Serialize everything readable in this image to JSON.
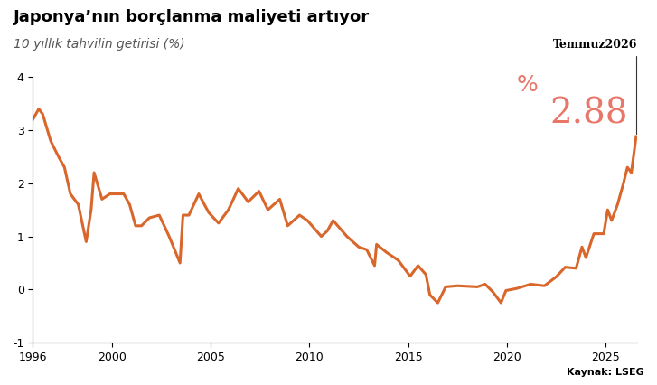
{
  "chart_data": {
    "type": "line",
    "title": "Japonya’nın borçlanma maliyeti artıyor",
    "subtitle": "10 yıllık tahvilin getirisi (%)",
    "source": "Kaynak: LSEG",
    "annotation": {
      "date_label": "Temmuz2026",
      "prefix": "%",
      "value": 2.88
    },
    "x": [
      1996.0,
      1996.3,
      1996.5,
      1996.9,
      1997.3,
      1997.6,
      1997.9,
      1998.3,
      1998.7,
      1998.95,
      1999.1,
      1999.5,
      1999.9,
      2000.3,
      2000.6,
      2000.9,
      2001.2,
      2001.5,
      2001.9,
      2002.4,
      2002.9,
      2003.45,
      2003.6,
      2003.9,
      2004.4,
      2004.9,
      2005.4,
      2005.9,
      2006.4,
      2006.9,
      2007.45,
      2007.9,
      2008.5,
      2008.9,
      2009.5,
      2009.9,
      2010.6,
      2010.9,
      2011.2,
      2011.9,
      2012.5,
      2012.9,
      2013.3,
      2013.4,
      2013.9,
      2014.5,
      2014.9,
      2015.1,
      2015.5,
      2015.9,
      2016.1,
      2016.5,
      2016.9,
      2017.5,
      2018.5,
      2018.9,
      2019.3,
      2019.7,
      2019.95,
      2020.5,
      2021.2,
      2021.9,
      2022.5,
      2022.95,
      2023.5,
      2023.8,
      2024.0,
      2024.4,
      2024.9,
      2025.1,
      2025.3,
      2025.6,
      2025.9,
      2026.1,
      2026.3,
      2026.54
    ],
    "values": [
      3.2,
      3.4,
      3.3,
      2.8,
      2.5,
      2.3,
      1.8,
      1.6,
      0.9,
      1.5,
      2.2,
      1.7,
      1.8,
      1.8,
      1.8,
      1.6,
      1.2,
      1.2,
      1.35,
      1.4,
      1.0,
      0.5,
      1.4,
      1.4,
      1.8,
      1.45,
      1.25,
      1.5,
      1.9,
      1.65,
      1.85,
      1.5,
      1.7,
      1.2,
      1.4,
      1.3,
      1.0,
      1.1,
      1.3,
      1.0,
      0.8,
      0.75,
      0.45,
      0.85,
      0.7,
      0.55,
      0.35,
      0.25,
      0.45,
      0.28,
      -0.1,
      -0.25,
      0.05,
      0.07,
      0.05,
      0.1,
      -0.05,
      -0.25,
      -0.02,
      0.02,
      0.1,
      0.07,
      0.24,
      0.42,
      0.4,
      0.8,
      0.6,
      1.05,
      1.05,
      1.5,
      1.3,
      1.6,
      2.0,
      2.3,
      2.2,
      2.88
    ],
    "color": "#d9662b",
    "xlim": [
      1996,
      2026.6
    ],
    "xticks": [
      1996,
      2000,
      2005,
      2010,
      2015,
      2020,
      2025
    ],
    "ylim": [
      -1,
      4
    ],
    "yticks": [
      -1,
      0,
      1,
      2,
      3,
      4
    ],
    "grid": false
  }
}
